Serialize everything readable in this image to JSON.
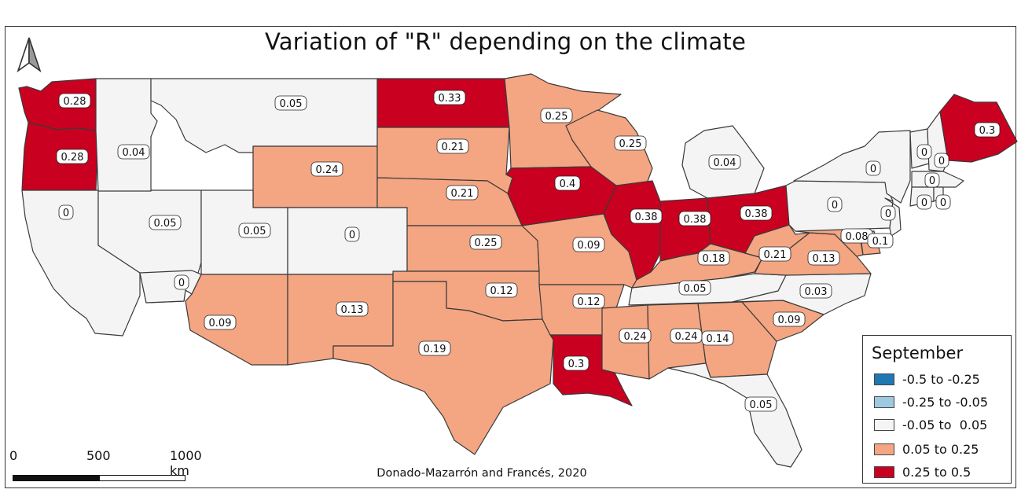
{
  "title": "Variation of \"R\" depending on the climate",
  "credit": "Donado-Mazarrón and Francés, 2020",
  "north_arrow_icon": "north-arrow-icon",
  "scale": {
    "ticks": [
      "0",
      "500",
      "1000 km"
    ]
  },
  "legend": {
    "title": "September",
    "classes": [
      {
        "label": "-0.5 to -0.25",
        "color": "#1f78b4"
      },
      {
        "label": "-0.25 to -0.05",
        "color": "#9ecae1"
      },
      {
        "label": "-0.05 to  0.05",
        "color": "#f4f4f4"
      },
      {
        "label": "0.05 to 0.25",
        "color": "#f4a582"
      },
      {
        "label": "0.25 to 0.5",
        "color": "#ca0020"
      }
    ]
  },
  "states": [
    {
      "id": "WA",
      "value": "0.28",
      "class": 4
    },
    {
      "id": "OR",
      "value": "0.28",
      "class": 4
    },
    {
      "id": "CA",
      "value": "0",
      "class": 2
    },
    {
      "id": "NV",
      "value": "0.05",
      "class": 2
    },
    {
      "id": "ID",
      "value": "0.04",
      "class": 2
    },
    {
      "id": "MT",
      "value": "0.05",
      "class": 2
    },
    {
      "id": "WY",
      "value": "0.24",
      "class": 3
    },
    {
      "id": "UT",
      "value": "0.05",
      "class": 2
    },
    {
      "id": "AZ",
      "value": "0.09",
      "class": 3
    },
    {
      "id": "CO",
      "value": "0",
      "class": 2
    },
    {
      "id": "NM",
      "value": "0.13",
      "class": 3
    },
    {
      "id": "ND",
      "value": "0.33",
      "class": 4
    },
    {
      "id": "SD",
      "value": "0.21",
      "class": 3
    },
    {
      "id": "NE",
      "value": "0.21",
      "class": 3
    },
    {
      "id": "KS",
      "value": "0.25",
      "class": 3
    },
    {
      "id": "OK",
      "value": "0.12",
      "class": 3
    },
    {
      "id": "TX",
      "value": "0.19",
      "class": 3
    },
    {
      "id": "MN",
      "value": "0.25",
      "class": 3
    },
    {
      "id": "IA",
      "value": "0.4",
      "class": 4
    },
    {
      "id": "MO",
      "value": "0.09",
      "class": 3
    },
    {
      "id": "AR",
      "value": "0.12",
      "class": 3
    },
    {
      "id": "LA",
      "value": "0.3",
      "class": 4
    },
    {
      "id": "WI",
      "value": "0.25",
      "class": 3
    },
    {
      "id": "IL",
      "value": "0.38",
      "class": 4
    },
    {
      "id": "MI",
      "value": "0.04",
      "class": 2
    },
    {
      "id": "IN",
      "value": "0.38",
      "class": 4
    },
    {
      "id": "OH",
      "value": "0.38",
      "class": 4
    },
    {
      "id": "KY",
      "value": "0.18",
      "class": 3
    },
    {
      "id": "TN",
      "value": "0.05",
      "class": 2
    },
    {
      "id": "MS",
      "value": "0.24",
      "class": 3
    },
    {
      "id": "AL",
      "value": "0.24",
      "class": 3
    },
    {
      "id": "GA",
      "value": "0.14",
      "class": 3
    },
    {
      "id": "FL",
      "value": "0.05",
      "class": 2
    },
    {
      "id": "SC",
      "value": "0.09",
      "class": 3
    },
    {
      "id": "NC",
      "value": "0.03",
      "class": 2
    },
    {
      "id": "VA",
      "value": "0.13",
      "class": 3
    },
    {
      "id": "WV",
      "value": "0.21",
      "class": 3
    },
    {
      "id": "MD",
      "value": "0.08",
      "class": 3
    },
    {
      "id": "DE",
      "value": "0.1",
      "class": 3
    },
    {
      "id": "PA",
      "value": "0",
      "class": 2
    },
    {
      "id": "NJ",
      "value": "0",
      "class": 2
    },
    {
      "id": "NY",
      "value": "0",
      "class": 2
    },
    {
      "id": "VT",
      "value": "0",
      "class": 2
    },
    {
      "id": "NH",
      "value": "0",
      "class": 2
    },
    {
      "id": "MA",
      "value": "0",
      "class": 2
    },
    {
      "id": "CT",
      "value": "0",
      "class": 2
    },
    {
      "id": "RI",
      "value": "0",
      "class": 2
    },
    {
      "id": "ME",
      "value": "0.3",
      "class": 4
    },
    {
      "id": "NV-south",
      "value": "0",
      "class": 2
    }
  ]
}
